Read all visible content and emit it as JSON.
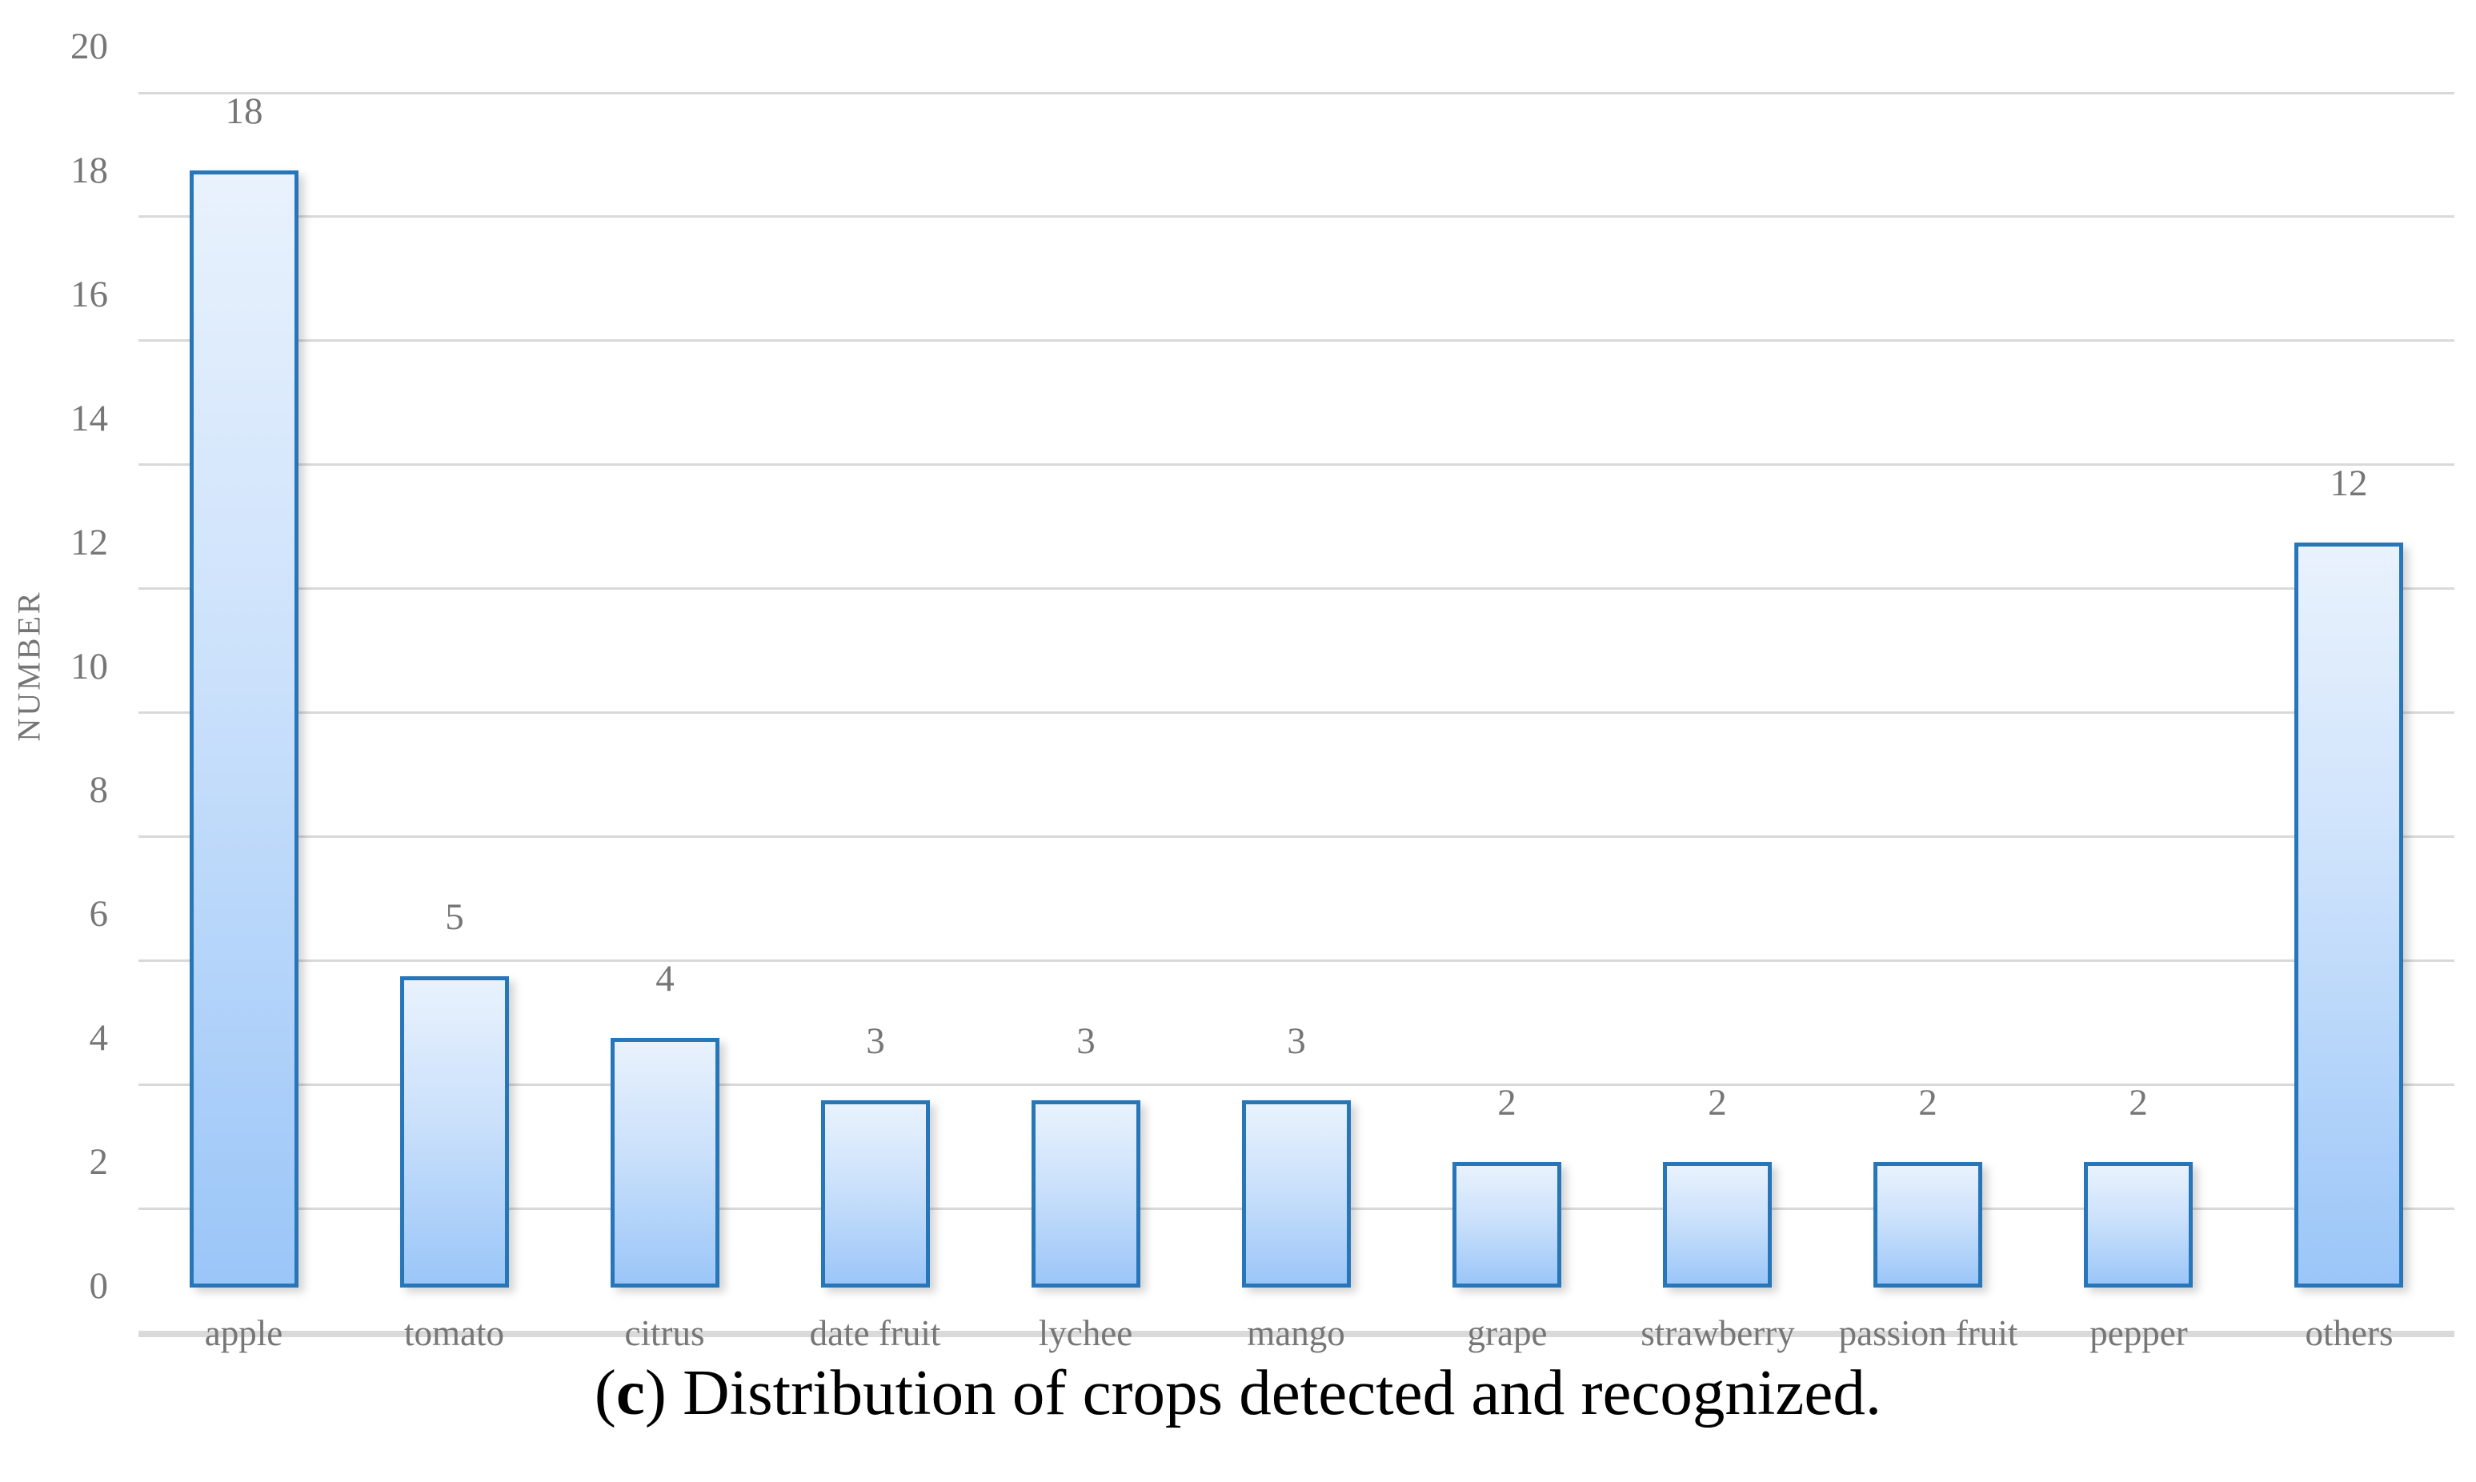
{
  "chart_data": {
    "type": "bar",
    "title": "",
    "xlabel": "",
    "ylabel": "NUMBER",
    "categories": [
      "apple",
      "tomato",
      "citrus",
      "date fruit",
      "lychee",
      "mango",
      "grape",
      "strawberry",
      "passion fruit",
      "pepper",
      "others"
    ],
    "values": [
      18,
      5,
      4,
      3,
      3,
      3,
      2,
      2,
      2,
      2,
      12
    ],
    "ylim": [
      0,
      20
    ],
    "yticks": [
      0,
      2,
      4,
      6,
      8,
      10,
      12,
      14,
      16,
      18,
      20
    ],
    "grid": true,
    "legend": "none",
    "bar_value_labels": [
      18,
      5,
      4,
      3,
      3,
      3,
      2,
      2,
      2,
      2,
      12
    ],
    "colors": {
      "bar_border": "#2776B9",
      "bar_fill_top": "#E9F2FD",
      "bar_fill_bottom": "#9BC6F8",
      "gridline": "#D9D9D9",
      "axis_baseline": "#DADADA",
      "tick_text": "#767676",
      "caption_text": "#000000"
    }
  },
  "caption": {
    "open": "(",
    "bold": "c",
    "rest": ") Distribution of crops detected and recognized."
  }
}
